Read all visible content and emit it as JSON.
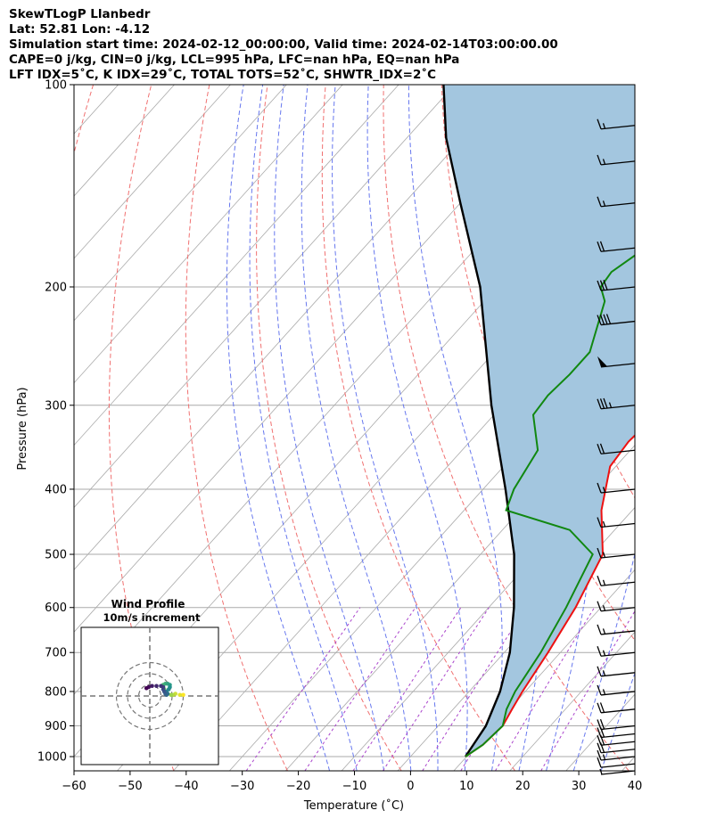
{
  "header": {
    "line1": "SkewTLogP Llanbedr",
    "line2": "Lat: 52.81   Lon: -4.12",
    "line3": "Simulation start time: 2024-02-12_00:00:00, Valid time: 2024-02-14T03:00:00.00",
    "line4": "CAPE=0 j/kg, CIN=0 j/kg, LCL=995 hPa, LFC=nan hPa, EQ=nan hPa",
    "line5": "LFT IDX=5˚C, K IDX=29˚C, TOTAL TOTS=52˚C, SHWTR_IDX=2˚C"
  },
  "chart_data": [
    {
      "type": "line",
      "subtype": "skew-t log-p",
      "xlabel": "Temperature (˚C)",
      "ylabel": "Pressure (hPa)",
      "x_ticks": [
        "−60",
        "−50",
        "−40",
        "−30",
        "−20",
        "−10",
        "0",
        "10",
        "20",
        "30",
        "40"
      ],
      "y_ticks": [
        "100",
        "200",
        "300",
        "400",
        "500",
        "600",
        "700",
        "800",
        "900",
        "1000"
      ],
      "xlim": [
        -60,
        40
      ],
      "ylim_hpa": [
        1050,
        100
      ],
      "y_scale": "log",
      "grid": true,
      "colors": {
        "temperature": "#ee1111",
        "dewpoint": "#118811",
        "parcel": "#000000",
        "fill": "#a3c6df",
        "dry_adiabats": "#f07070",
        "moist_adiabats": "#6677ee",
        "mixing_ratio": "#aa44cc",
        "isotherms": "#aaaaaa"
      },
      "series": [
        {
          "role": "temperature",
          "points": [
            [
              9.8,
              1000
            ],
            [
              11,
              960
            ],
            [
              11.5,
              900
            ],
            [
              10.5,
              850
            ],
            [
              9.5,
              800
            ],
            [
              7.8,
              700
            ],
            [
              5.5,
              600
            ],
            [
              1.8,
              500
            ],
            [
              -5.5,
              430
            ],
            [
              -11,
              370
            ],
            [
              -11.7,
              340
            ],
            [
              -10.9,
              300
            ],
            [
              -11.5,
              280
            ],
            [
              -11.9,
              260
            ],
            [
              -6.5,
              220
            ],
            [
              -6.1,
              200
            ],
            [
              -6,
              180
            ],
            [
              -6,
              170
            ],
            [
              -4,
              160
            ],
            [
              -2.5,
              150
            ],
            [
              -1,
              140
            ],
            [
              0,
              130
            ],
            [
              3,
              120
            ],
            [
              5,
              110
            ],
            [
              6.5,
              100
            ]
          ]
        },
        {
          "role": "dewpoint",
          "points": [
            [
              9.8,
              1000
            ],
            [
              11,
              960
            ],
            [
              11.5,
              900
            ],
            [
              9.5,
              850
            ],
            [
              8.2,
              800
            ],
            [
              6.5,
              700
            ],
            [
              3.8,
              600
            ],
            [
              0,
              500
            ],
            [
              -8,
              460
            ],
            [
              -22.5,
              430
            ],
            [
              -24.5,
              400
            ],
            [
              -26.5,
              350
            ],
            [
              -33,
              310
            ],
            [
              -33.5,
              290
            ],
            [
              -33,
              270
            ],
            [
              -33,
              250
            ],
            [
              -38.5,
              210
            ],
            [
              -41.5,
              200
            ],
            [
              -42,
              190
            ],
            [
              -39,
              170
            ],
            [
              -30,
              130
            ],
            [
              -20,
              100
            ]
          ]
        },
        {
          "role": "parcel",
          "points": [
            [
              9.8,
              1000
            ],
            [
              8.5,
              900
            ],
            [
              5.5,
              800
            ],
            [
              1,
              700
            ],
            [
              -5.5,
              600
            ],
            [
              -14,
              500
            ],
            [
              -26,
              400
            ],
            [
              -42,
              300
            ],
            [
              -63,
              200
            ],
            [
              -80,
              150
            ],
            [
              -93,
              120
            ],
            [
              -102,
              100
            ]
          ]
        }
      ],
      "mixing_ratio_gkg": [
        0.4,
        1,
        2,
        3,
        5,
        8,
        12,
        20
      ],
      "dry_adiabats_theta_k": [
        210,
        230,
        250,
        270,
        290,
        310,
        330,
        350,
        370,
        390,
        410,
        430,
        450,
        470
      ],
      "moist_adiabats_theta_w_k": [
        258,
        263,
        268,
        273,
        278,
        283,
        288,
        293,
        298,
        303,
        308
      ],
      "wind_barbs_pressure_hpa": [
        1050,
        1025,
        1000,
        975,
        950,
        925,
        900,
        850,
        800,
        750,
        700,
        650,
        600,
        550,
        500,
        450,
        400,
        350,
        300,
        260,
        225,
        200,
        175,
        150,
        130,
        115
      ],
      "wind_barbs_speed_kt": [
        5,
        10,
        15,
        20,
        20,
        20,
        20,
        20,
        15,
        15,
        15,
        15,
        15,
        15,
        15,
        15,
        15,
        20,
        35,
        50,
        40,
        30,
        20,
        15,
        15,
        15
      ]
    },
    {
      "type": "scatter",
      "subtype": "hodograph",
      "title": "Wind Profile",
      "subtitle": "10m/s increment",
      "rings_ms": [
        10,
        20,
        30
      ],
      "points_uv": [
        [
          30,
          1
        ],
        [
          27,
          1
        ],
        [
          23,
          2
        ],
        [
          21,
          1
        ],
        [
          19,
          1
        ],
        [
          16,
          2
        ],
        [
          14,
          4
        ],
        [
          13,
          6
        ],
        [
          12,
          8
        ],
        [
          12,
          10
        ],
        [
          14,
          11
        ],
        [
          16,
          11
        ],
        [
          18,
          10
        ],
        [
          18,
          8
        ],
        [
          17,
          6
        ],
        [
          15,
          4
        ],
        [
          16,
          2
        ],
        [
          15,
          1
        ],
        [
          14,
          2
        ],
        [
          13,
          4
        ],
        [
          12,
          6
        ],
        [
          12,
          8
        ],
        [
          10,
          9
        ],
        [
          6,
          9
        ],
        [
          2,
          9
        ],
        [
          -1,
          8
        ],
        [
          -3,
          7
        ]
      ]
    }
  ]
}
